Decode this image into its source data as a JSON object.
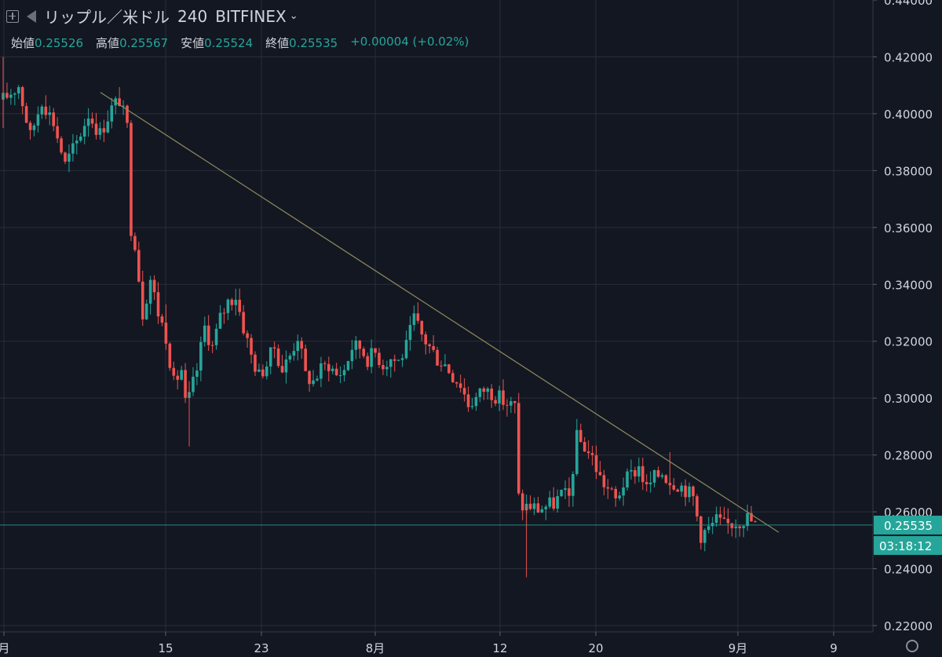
{
  "header": {
    "symbol": "リップル／米ドル",
    "interval": "240",
    "exchange": "BITFINEX",
    "ohlc": [
      {
        "label": "始値",
        "value": "0.25526"
      },
      {
        "label": "高値",
        "value": "0.25567"
      },
      {
        "label": "安値",
        "value": "0.25524"
      },
      {
        "label": "終値",
        "value": "0.25535"
      }
    ],
    "change": "+0.00004 (+0.02%)"
  },
  "colors": {
    "background": "#131722",
    "up": "#26a69a",
    "down": "#ef5350",
    "grid": "#2a2e39",
    "trendline": "#8c8a5c",
    "price_line": "#26a69a",
    "axis_text": "#d1d4dc"
  },
  "chart_data": {
    "type": "candlestick",
    "x_ticks": [
      "月",
      "15",
      "23",
      "8月",
      "12",
      "20",
      "9月",
      "9"
    ],
    "y_ticks": [
      "0.22000",
      "0.24000",
      "0.26000",
      "0.28000",
      "0.30000",
      "0.32000",
      "0.34000",
      "0.36000",
      "0.38000",
      "0.40000",
      "0.42000",
      "0.44000"
    ],
    "ylim": [
      0.22,
      0.44
    ],
    "last_price": "0.25535",
    "countdown": "03:18:12",
    "price_path": [
      [
        0,
        0.405
      ],
      [
        4,
        0.41
      ],
      [
        7,
        0.392
      ],
      [
        10,
        0.405
      ],
      [
        13,
        0.397
      ],
      [
        16,
        0.382
      ],
      [
        19,
        0.39
      ],
      [
        22,
        0.4
      ],
      [
        25,
        0.393
      ],
      [
        28,
        0.402
      ],
      [
        30,
        0.405
      ],
      [
        32,
        0.395
      ],
      [
        33,
        0.36
      ],
      [
        34,
        0.355
      ],
      [
        36,
        0.33
      ],
      [
        38,
        0.342
      ],
      [
        40,
        0.33
      ],
      [
        42,
        0.322
      ],
      [
        44,
        0.305
      ],
      [
        46,
        0.31
      ],
      [
        47,
        0.298
      ],
      [
        48,
        0.3
      ],
      [
        50,
        0.31
      ],
      [
        52,
        0.325
      ],
      [
        54,
        0.318
      ],
      [
        56,
        0.328
      ],
      [
        58,
        0.334
      ],
      [
        60,
        0.336
      ],
      [
        62,
        0.325
      ],
      [
        64,
        0.315
      ],
      [
        66,
        0.308
      ],
      [
        68,
        0.312
      ],
      [
        70,
        0.318
      ],
      [
        72,
        0.31
      ],
      [
        74,
        0.315
      ],
      [
        76,
        0.322
      ],
      [
        78,
        0.308
      ],
      [
        80,
        0.306
      ],
      [
        82,
        0.31
      ],
      [
        84,
        0.312
      ],
      [
        86,
        0.308
      ],
      [
        88,
        0.31
      ],
      [
        90,
        0.318
      ],
      [
        92,
        0.318
      ],
      [
        94,
        0.314
      ],
      [
        96,
        0.316
      ],
      [
        98,
        0.312
      ],
      [
        100,
        0.314
      ],
      [
        102,
        0.313
      ],
      [
        104,
        0.318
      ],
      [
        106,
        0.328
      ],
      [
        108,
        0.322
      ],
      [
        110,
        0.318
      ],
      [
        112,
        0.314
      ],
      [
        114,
        0.312
      ],
      [
        116,
        0.308
      ],
      [
        118,
        0.305
      ],
      [
        120,
        0.298
      ],
      [
        122,
        0.3
      ],
      [
        124,
        0.303
      ],
      [
        126,
        0.302
      ],
      [
        128,
        0.3
      ],
      [
        130,
        0.298
      ],
      [
        132,
        0.297
      ],
      [
        133,
        0.265
      ],
      [
        134,
        0.262
      ],
      [
        136,
        0.262
      ],
      [
        138,
        0.261
      ],
      [
        140,
        0.262
      ],
      [
        142,
        0.263
      ],
      [
        144,
        0.266
      ],
      [
        146,
        0.265
      ],
      [
        148,
        0.286
      ],
      [
        150,
        0.283
      ],
      [
        152,
        0.279
      ],
      [
        154,
        0.272
      ],
      [
        156,
        0.268
      ],
      [
        158,
        0.264
      ],
      [
        160,
        0.27
      ],
      [
        162,
        0.273
      ],
      [
        164,
        0.276
      ],
      [
        166,
        0.268
      ],
      [
        168,
        0.272
      ],
      [
        170,
        0.274
      ],
      [
        172,
        0.271
      ],
      [
        174,
        0.27
      ],
      [
        176,
        0.268
      ],
      [
        178,
        0.265
      ],
      [
        180,
        0.252
      ],
      [
        182,
        0.254
      ],
      [
        184,
        0.257
      ],
      [
        186,
        0.255
      ],
      [
        188,
        0.256
      ],
      [
        190,
        0.257
      ],
      [
        192,
        0.258
      ],
      [
        194,
        0.2555
      ]
    ],
    "trendline": [
      [
        0.4075,
        0.2528
      ]
    ],
    "grid": true
  }
}
